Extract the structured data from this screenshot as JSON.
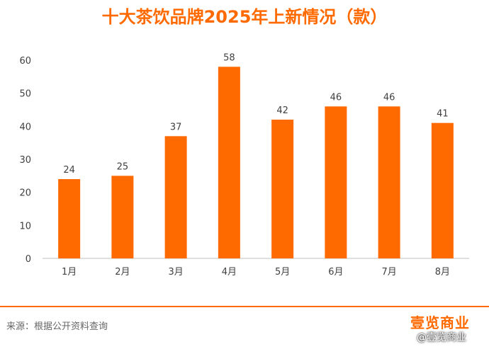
{
  "page": {
    "source": "来源：根据公开资料查询",
    "logo": "壹览商业",
    "watermark": "@壹览商业"
  },
  "colors": {
    "bar": "#ff6a00",
    "title": "#ff6a00",
    "axis": "#bfbfbf",
    "text": "#404040"
  },
  "chart_data": {
    "type": "bar",
    "title": "十大茶饮品牌2025年上新情况（款）",
    "categories": [
      "1月",
      "2月",
      "3月",
      "4月",
      "5月",
      "6月",
      "7月",
      "8月"
    ],
    "values": [
      24,
      25,
      37,
      58,
      42,
      46,
      46,
      41
    ],
    "xlabel": "",
    "ylabel": "",
    "ylim": [
      0,
      60
    ],
    "yticks": [
      0,
      10,
      20,
      30,
      40,
      50,
      60
    ],
    "grid": false,
    "data_labels": true
  }
}
